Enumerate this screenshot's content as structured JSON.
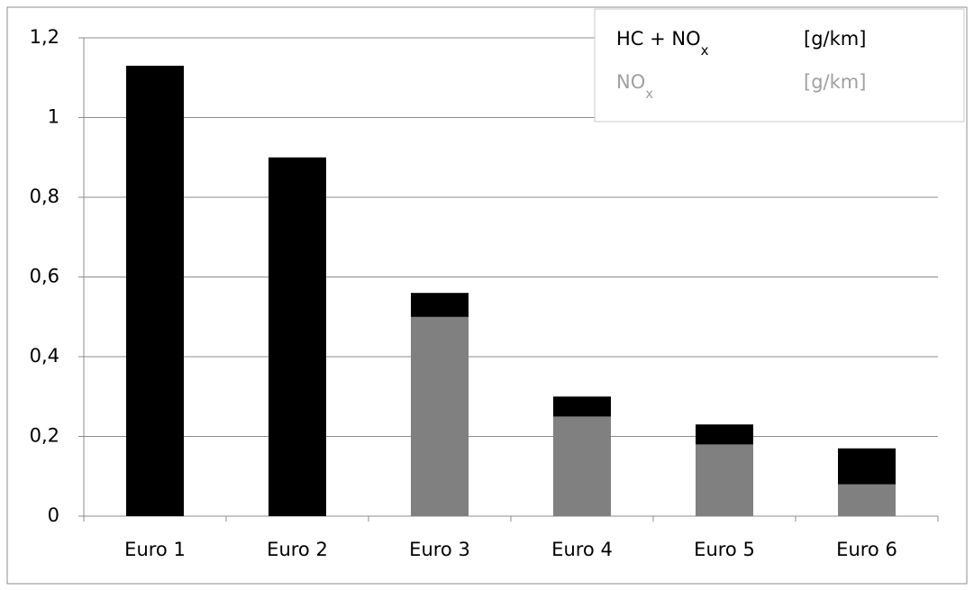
{
  "chart_data": {
    "type": "bar",
    "categories": [
      "Euro 1",
      "Euro 2",
      "Euro 3",
      "Euro 4",
      "Euro 5",
      "Euro 6"
    ],
    "series": [
      {
        "name": "HC + NOx",
        "unit": "[g/km]",
        "color": "#000000",
        "values": [
          1.13,
          0.9,
          0.56,
          0.3,
          0.23,
          0.17
        ]
      },
      {
        "name": "NOx",
        "unit": "[g/km]",
        "color": "#808080",
        "values": [
          null,
          null,
          0.5,
          0.25,
          0.18,
          0.08
        ]
      }
    ],
    "ylim": [
      0,
      1.2
    ],
    "yticks": [
      0,
      {
        "value": 0.2,
        "label": "0,2"
      },
      {
        "value": 0.4,
        "label": "0,4"
      },
      {
        "value": 0.6,
        "label": "0,6"
      },
      {
        "value": 0.8,
        "label": "0,8"
      },
      1,
      {
        "value": 1.2,
        "label": "1,2"
      }
    ],
    "grid": true,
    "legend": "top-right"
  }
}
